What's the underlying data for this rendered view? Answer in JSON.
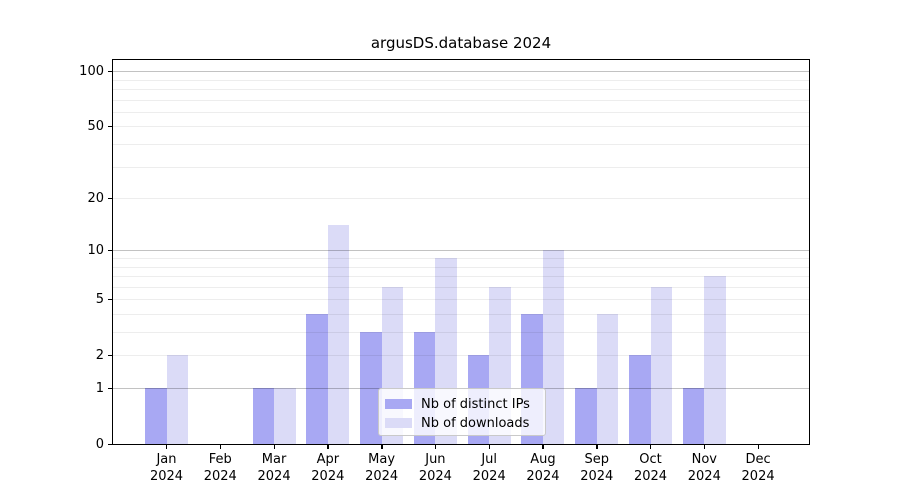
{
  "chart_data": {
    "type": "bar",
    "title": "argusDS.database 2024",
    "year": "2024",
    "months": [
      "Jan",
      "Feb",
      "Mar",
      "Apr",
      "May",
      "Jun",
      "Jul",
      "Aug",
      "Sep",
      "Oct",
      "Nov",
      "Dec"
    ],
    "series": [
      {
        "name": "Nb of distinct IPs",
        "color": "#a8a8f3",
        "values": [
          1,
          0,
          1,
          4,
          3,
          3,
          2,
          4,
          1,
          2,
          1,
          0
        ]
      },
      {
        "name": "Nb of downloads",
        "color": "#dbdbf7",
        "values": [
          2,
          0,
          1,
          14,
          6,
          9,
          6,
          10,
          4,
          6,
          7,
          0
        ]
      }
    ],
    "y_scale": "log1p",
    "ylim": [
      0,
      115
    ],
    "y_ticks": [
      0,
      1,
      2,
      5,
      10,
      20,
      50,
      100
    ],
    "y_tick_labels": [
      "0",
      "1",
      "2",
      "5",
      "10",
      "20",
      "50",
      "100"
    ],
    "y_major_grid": [
      1,
      10,
      100
    ],
    "y_minor_grid": [
      2,
      3,
      4,
      5,
      6,
      7,
      8,
      9,
      20,
      30,
      40,
      50,
      60,
      70,
      80,
      90
    ],
    "grid": true,
    "legend_position": "lower center",
    "xlabel": "",
    "ylabel": ""
  }
}
